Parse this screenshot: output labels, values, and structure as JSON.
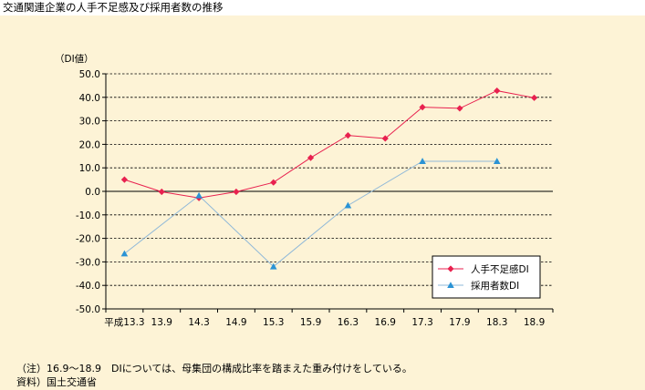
{
  "title": "交通関連企業の人手不足感及び採用者数の推移",
  "note": "（注）16.9～18.9　DIについては、母集団の構成比率を踏まえた重み付けをしている。",
  "source": "資料）国土交通省",
  "colors": {
    "background": "#fdf3d6",
    "series_shortage": "#e8214f",
    "series_hiring": "#2a93d5",
    "line_hiring": "#8fb8d8"
  },
  "chart_data": {
    "type": "line",
    "ylabel": "（DI値）",
    "ylim": [
      -50,
      50
    ],
    "y_ticks": [
      "50.0",
      "40.0",
      "30.0",
      "20.0",
      "10.0",
      "0.0",
      "-10.0",
      "-20.0",
      "-30.0",
      "-40.0",
      "-50.0"
    ],
    "categories": [
      "平成13.3",
      "13.9",
      "14.3",
      "14.9",
      "15.3",
      "15.9",
      "16.3",
      "16.9",
      "17.3",
      "17.9",
      "18.3",
      "18.9"
    ],
    "grid": true,
    "legend_position": "bottom-right",
    "series": [
      {
        "name": "人手不足感DI",
        "marker": "diamond",
        "values": [
          5.0,
          -0.2,
          -2.8,
          -0.2,
          3.8,
          14.3,
          23.8,
          22.5,
          35.8,
          35.3,
          42.8,
          39.8
        ]
      },
      {
        "name": "採用者数DI",
        "marker": "triangle",
        "values": [
          -26.5,
          null,
          -1.8,
          null,
          -32.0,
          null,
          -6.0,
          null,
          12.8,
          null,
          12.8,
          null
        ]
      }
    ]
  }
}
